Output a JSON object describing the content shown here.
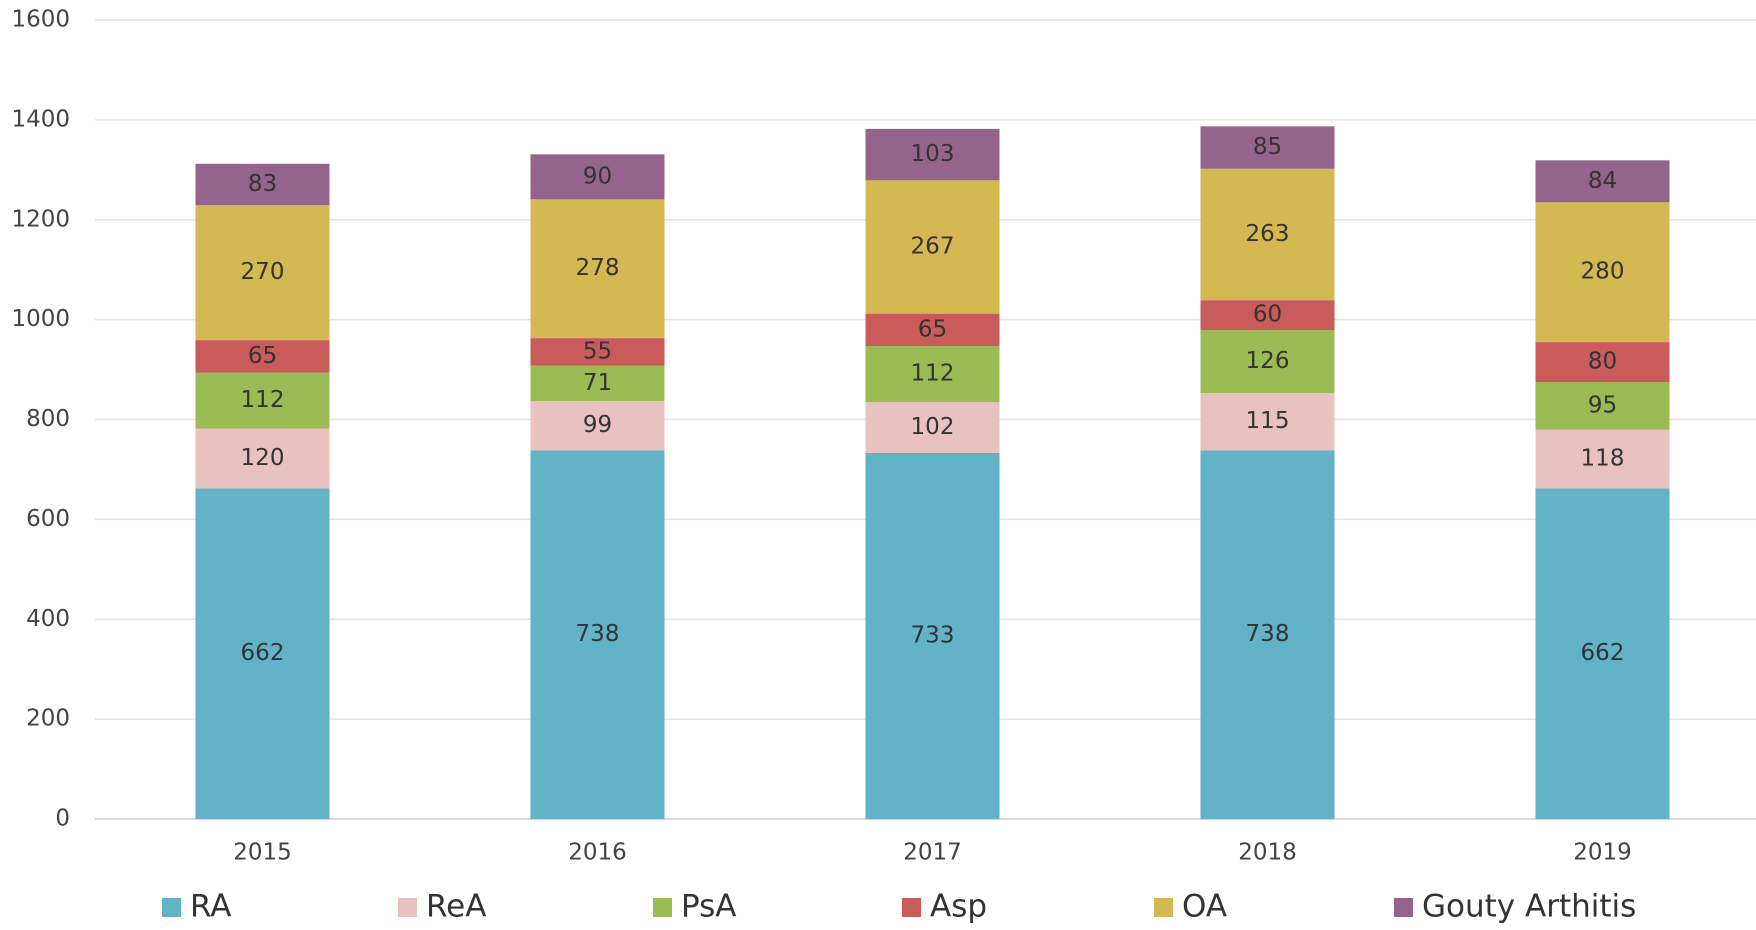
{
  "chart_data": {
    "type": "stacked_bar",
    "categories": [
      "2015",
      "2016",
      "2017",
      "2018",
      "2019"
    ],
    "series": [
      {
        "name": "RA",
        "color": "#62b2c8",
        "values": [
          662,
          738,
          733,
          738,
          662
        ]
      },
      {
        "name": "ReA",
        "color": "#e8c1c1",
        "values": [
          120,
          99,
          102,
          115,
          118
        ]
      },
      {
        "name": "PsA",
        "color": "#9bbb55",
        "values": [
          112,
          71,
          112,
          126,
          95
        ]
      },
      {
        "name": "Asp",
        "color": "#c95b5b",
        "values": [
          65,
          55,
          65,
          60,
          80
        ]
      },
      {
        "name": "OA",
        "color": "#d4b852",
        "values": [
          270,
          278,
          267,
          263,
          280
        ]
      },
      {
        "name": "Gouty Arthitis",
        "color": "#94648c",
        "values": [
          83,
          90,
          103,
          85,
          84
        ]
      }
    ],
    "ylim": [
      0,
      1600
    ],
    "yticks": [
      0,
      200,
      400,
      600,
      800,
      1000,
      1200,
      1400,
      1600
    ],
    "grid": true,
    "legend": "bottom"
  }
}
